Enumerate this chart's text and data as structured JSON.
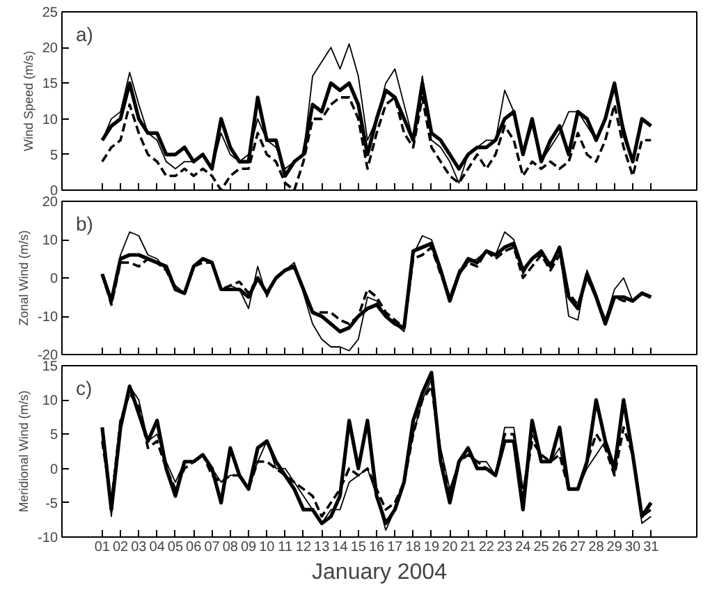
{
  "chart_data": [
    {
      "type": "line",
      "ylabel": "Wind Speed (m/s)",
      "annotations": [
        "a)"
      ],
      "grid": false,
      "tick_labels": "y",
      "x": [
        1,
        1.5,
        2,
        2.5,
        3,
        3.5,
        4,
        4.5,
        5,
        5.5,
        6,
        6.5,
        7,
        7.5,
        8,
        8.5,
        9,
        9.5,
        10,
        10.5,
        11,
        11.5,
        12,
        12.5,
        13,
        13.5,
        14,
        14.5,
        15,
        15.5,
        16,
        16.5,
        17,
        17.5,
        18,
        18.5,
        19,
        19.5,
        20,
        20.5,
        21,
        21.5,
        22,
        22.5,
        23,
        23.5,
        24,
        24.5,
        25,
        25.5,
        26,
        26.5,
        27,
        27.5,
        28,
        28.5,
        29,
        29.5,
        30,
        30.5,
        31
      ],
      "xlim": [
        -1.2,
        33.5
      ],
      "xticks": [
        1,
        2,
        3,
        4,
        5,
        6,
        7,
        8,
        9,
        10,
        11,
        12,
        13,
        14,
        15,
        16,
        17,
        18,
        19,
        20,
        21,
        22,
        23,
        24,
        25,
        26,
        27,
        28,
        29,
        30,
        31
      ],
      "ylim": [
        0,
        25
      ],
      "yticks": [
        0,
        5,
        10,
        15,
        20,
        25
      ],
      "series": [
        {
          "color": "#000000",
          "line_style": "solid",
          "values": [
            7,
            10,
            11,
            16.5,
            12,
            8,
            7,
            4,
            3,
            4,
            4,
            5,
            3,
            8,
            5,
            4,
            5,
            10,
            7,
            6,
            3,
            4,
            5,
            16,
            18,
            20,
            17,
            20.5,
            16,
            7,
            10,
            15,
            17,
            12,
            7,
            16,
            7,
            6,
            4,
            1,
            5,
            6,
            7,
            7,
            14,
            11,
            5,
            9,
            4,
            6,
            8,
            11,
            11,
            9,
            7,
            10,
            14,
            9,
            4,
            10,
            9
          ]
        },
        {
          "color": "#000000",
          "line_style": "solid",
          "values": [
            7,
            9,
            10,
            15,
            10,
            8,
            8,
            5,
            5,
            6,
            4,
            5,
            3,
            10,
            6,
            4,
            4,
            13,
            7,
            7,
            2,
            4,
            5,
            12,
            11,
            15,
            14,
            15,
            12,
            5,
            10,
            14,
            13,
            10,
            7,
            15,
            8,
            7,
            5,
            3,
            5,
            6,
            6,
            7,
            10,
            11,
            5,
            10,
            4,
            7,
            9,
            5,
            11,
            10,
            7,
            10,
            15,
            8,
            4,
            10,
            9
          ]
        },
        {
          "color": "#000000",
          "line_style": "dashed",
          "values": [
            4,
            6,
            7,
            12,
            8,
            5,
            4,
            2,
            2,
            3,
            2,
            3,
            2,
            0,
            2,
            3,
            3,
            8,
            5,
            4,
            1,
            0,
            4,
            10,
            10,
            12,
            13,
            13,
            10,
            3,
            8,
            12,
            13,
            8,
            6,
            13,
            6,
            4,
            2,
            1,
            3,
            5,
            3,
            5,
            9,
            7,
            2,
            4,
            3,
            4,
            3,
            4,
            8,
            5,
            4,
            7,
            12,
            6,
            2,
            7,
            7
          ]
        }
      ]
    },
    {
      "type": "line",
      "ylabel": "Zonal Wind (m/s)",
      "annotations": [
        "b)"
      ],
      "grid": false,
      "tick_labels": "y",
      "x": [
        1,
        1.5,
        2,
        2.5,
        3,
        3.5,
        4,
        4.5,
        5,
        5.5,
        6,
        6.5,
        7,
        7.5,
        8,
        8.5,
        9,
        9.5,
        10,
        10.5,
        11,
        11.5,
        12,
        12.5,
        13,
        13.5,
        14,
        14.5,
        15,
        15.5,
        16,
        16.5,
        17,
        17.5,
        18,
        18.5,
        19,
        19.5,
        20,
        20.5,
        21,
        21.5,
        22,
        22.5,
        23,
        23.5,
        24,
        24.5,
        25,
        25.5,
        26,
        26.5,
        27,
        27.5,
        28,
        28.5,
        29,
        29.5,
        30,
        30.5,
        31
      ],
      "xlim": [
        -1.2,
        33.5
      ],
      "xticks": [
        1,
        2,
        3,
        4,
        5,
        6,
        7,
        8,
        9,
        10,
        11,
        12,
        13,
        14,
        15,
        16,
        17,
        18,
        19,
        20,
        21,
        22,
        23,
        24,
        25,
        26,
        27,
        28,
        29,
        30,
        31
      ],
      "ylim": [
        -20,
        20
      ],
      "yticks": [
        -20,
        -10,
        0,
        10,
        20
      ],
      "series": [
        {
          "color": "#000000",
          "line_style": "solid",
          "values": [
            1,
            -7,
            6,
            12,
            11,
            6,
            5,
            2,
            -2,
            -4,
            3,
            5,
            4,
            -3,
            -2,
            -3,
            -8,
            3,
            -5,
            0,
            2,
            4,
            -4,
            -12,
            -16,
            -18,
            -18,
            -19,
            -16,
            -5,
            -6,
            -10,
            -12,
            -14,
            6,
            11,
            10,
            3,
            -5,
            2,
            4,
            5,
            7,
            6,
            12,
            10,
            1,
            5,
            6,
            4,
            7,
            -10,
            -11,
            2,
            -4,
            -11,
            -3,
            0,
            -6,
            -4,
            -5
          ]
        },
        {
          "color": "#000000",
          "line_style": "solid",
          "values": [
            1,
            -6,
            5,
            6,
            6,
            5,
            4,
            3,
            -3,
            -4,
            3,
            5,
            4,
            -3,
            -3,
            -3,
            -5,
            0,
            -4,
            0,
            2,
            3,
            -3,
            -9,
            -10,
            -12,
            -14,
            -13,
            -10,
            -8,
            -7,
            -10,
            -12,
            -13,
            7,
            8,
            9,
            2,
            -6,
            1,
            5,
            4,
            7,
            6,
            8,
            9,
            2,
            5,
            7,
            3,
            8,
            -5,
            -8,
            1,
            -5,
            -12,
            -5,
            -5,
            -6,
            -4,
            -5
          ]
        },
        {
          "color": "#000000",
          "line_style": "dashed",
          "values": [
            1,
            -7,
            4,
            4,
            3,
            5,
            4,
            2,
            -3,
            -4,
            3,
            4,
            4,
            -3,
            -2,
            -1,
            -4,
            0,
            -4,
            0,
            2,
            3,
            -3,
            -9,
            -9,
            -9,
            -11,
            -12,
            -10,
            -3,
            -5,
            -9,
            -11,
            -13,
            5,
            6,
            8,
            1,
            -5,
            1,
            4,
            3,
            7,
            5,
            7,
            8,
            0,
            3,
            6,
            2,
            6,
            -4,
            -7,
            0,
            -5,
            -11,
            -5,
            -6,
            -6,
            -4,
            -5
          ]
        }
      ]
    },
    {
      "type": "line",
      "ylabel": "Meridional Wind (m/s)",
      "xlabel": "January 2004",
      "annotations": [
        "c)"
      ],
      "grid": false,
      "x": [
        1,
        1.5,
        2,
        2.5,
        3,
        3.5,
        4,
        4.5,
        5,
        5.5,
        6,
        6.5,
        7,
        7.5,
        8,
        8.5,
        9,
        9.5,
        10,
        10.5,
        11,
        11.5,
        12,
        12.5,
        13,
        13.5,
        14,
        14.5,
        15,
        15.5,
        16,
        16.5,
        17,
        17.5,
        18,
        18.5,
        19,
        19.5,
        20,
        20.5,
        21,
        21.5,
        22,
        22.5,
        23,
        23.5,
        24,
        24.5,
        25,
        25.5,
        26,
        26.5,
        27,
        27.5,
        28,
        28.5,
        29,
        29.5,
        30,
        30.5,
        31
      ],
      "xlim": [
        -1.2,
        33.5
      ],
      "xticks": [
        {
          "value": 1,
          "label": "01"
        },
        {
          "value": 2,
          "label": "02"
        },
        {
          "value": 3,
          "label": "03"
        },
        {
          "value": 4,
          "label": "04"
        },
        {
          "value": 5,
          "label": "05"
        },
        {
          "value": 6,
          "label": "06"
        },
        {
          "value": 7,
          "label": "07"
        },
        {
          "value": 8,
          "label": "08"
        },
        {
          "value": 9,
          "label": "09"
        },
        10,
        11,
        12,
        13,
        14,
        15,
        16,
        17,
        18,
        19,
        20,
        21,
        22,
        23,
        24,
        25,
        26,
        27,
        28,
        29,
        30,
        31
      ],
      "ylim": [
        -10,
        15
      ],
      "yticks": [
        -10,
        -5,
        0,
        5,
        10,
        15
      ],
      "series": [
        {
          "color": "#000000",
          "line_style": "solid",
          "values": [
            5,
            -7,
            7,
            12,
            10,
            4,
            5,
            1,
            -2,
            1,
            1,
            2,
            0,
            -2,
            -1,
            -1,
            -3,
            1,
            4,
            0,
            0,
            -2,
            -4,
            -6,
            -8,
            -6,
            -6,
            -2,
            -1,
            0,
            -4,
            -9,
            -6,
            -2,
            5,
            10,
            13,
            3,
            -3,
            1,
            2,
            1,
            1,
            -1,
            6,
            6,
            -3,
            5,
            2,
            1,
            3,
            -3,
            -3,
            0,
            2,
            4,
            -1,
            9,
            2,
            -8,
            -7
          ]
        },
        {
          "color": "#000000",
          "line_style": "solid",
          "values": [
            6,
            -6,
            6,
            12,
            8,
            4,
            7,
            0,
            -4,
            1,
            1,
            2,
            0,
            -5,
            3,
            -1,
            -3,
            3,
            4,
            1,
            -1,
            -3,
            -6,
            -6,
            -8,
            -7,
            -4,
            7,
            0,
            7,
            -4,
            -8,
            -6,
            -2,
            7,
            11,
            14,
            1,
            -5,
            1,
            3,
            0,
            0,
            -1,
            4,
            4,
            -6,
            7,
            1,
            1,
            6,
            -3,
            -3,
            1,
            10,
            4,
            0,
            10,
            2,
            -7,
            -5
          ]
        },
        {
          "color": "#000000",
          "line_style": "dashed",
          "values": [
            4,
            -5,
            7,
            11,
            9,
            3,
            4,
            0,
            -3,
            0,
            1,
            2,
            -1,
            -2,
            -1,
            -1,
            -3,
            1,
            1,
            0,
            -1,
            -2,
            -3,
            -4,
            -7,
            -5,
            -3,
            0,
            -1,
            0,
            -3,
            -6,
            -5,
            -2,
            5,
            10,
            12,
            2,
            -4,
            1,
            2,
            1,
            0,
            -1,
            5,
            5,
            -4,
            4,
            2,
            1,
            2,
            -3,
            -3,
            1,
            5,
            3,
            -1,
            6,
            2,
            -7,
            -6
          ]
        }
      ]
    }
  ]
}
